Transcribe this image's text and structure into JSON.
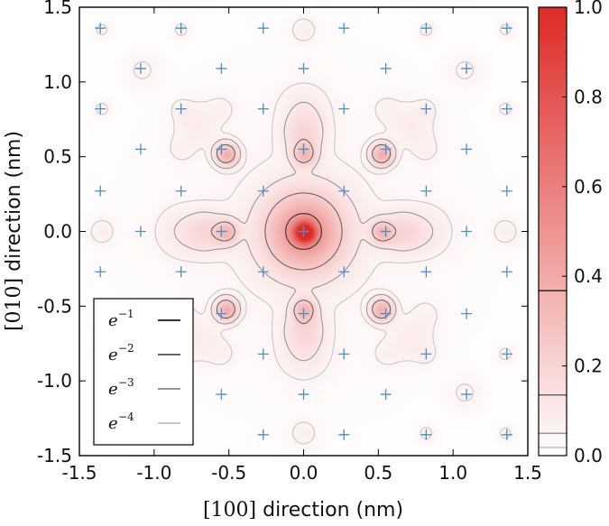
{
  "chart_data": [
    {
      "type": "heatmap",
      "title": "",
      "xlabel": {
        "bracket": "[100]",
        "text": " direction (nm)"
      },
      "ylabel": {
        "bracket": "[010]",
        "text": " direction (nm)"
      },
      "xlim": [
        -1.5,
        1.5
      ],
      "ylim": [
        -1.5,
        1.5
      ],
      "xticks": [
        "-1.5",
        "-1.0",
        "-0.5",
        "0.0",
        "0.5",
        "1.0",
        "1.5"
      ],
      "yticks": [
        "-1.5",
        "-1.0",
        "-0.5",
        "0.0",
        "0.5",
        "1.0",
        "1.5"
      ],
      "colormap": {
        "low": "#ffffff",
        "high": "#dd2a26"
      },
      "colorbar": {
        "range": [
          0.0,
          1.0
        ],
        "ticks": [
          "0.0",
          "0.2",
          "0.4",
          "0.6",
          "0.8",
          "1.0"
        ],
        "contour_marks": [
          0.3679,
          0.1353,
          0.0498,
          0.0183
        ]
      },
      "contour_levels": [
        {
          "label": "e",
          "exponent": "−1",
          "value": 0.3679,
          "color": "#333333"
        },
        {
          "label": "e",
          "exponent": "−2",
          "value": 0.1353,
          "color": "#666666"
        },
        {
          "label": "e",
          "exponent": "−3",
          "value": 0.0498,
          "color": "#999999"
        },
        {
          "label": "e",
          "exponent": "−4",
          "value": 0.0183,
          "color": "#c8c8c8"
        }
      ],
      "legend_position": "lower-left",
      "density_peaks": [
        {
          "x": 0.0,
          "y": 0.0,
          "v": 1.0,
          "s": 0.045
        },
        {
          "x": 0.0,
          "y": 0.0,
          "v": 0.32,
          "s": 0.14
        },
        {
          "x": 0.0,
          "y": 0.0,
          "v": 0.12,
          "s": 0.23
        },
        {
          "x": 0.0,
          "y": 0.65,
          "v": 0.09,
          "s": 0.09
        },
        {
          "x": 0.0,
          "y": -0.65,
          "v": 0.09,
          "s": 0.09
        },
        {
          "x": 0.65,
          "y": 0.0,
          "v": 0.09,
          "s": 0.09
        },
        {
          "x": -0.65,
          "y": 0.0,
          "v": 0.09,
          "s": 0.09
        },
        {
          "x": 0.52,
          "y": 0.52,
          "v": 0.26,
          "s": 0.05
        },
        {
          "x": -0.52,
          "y": 0.52,
          "v": 0.26,
          "s": 0.05
        },
        {
          "x": 0.52,
          "y": -0.52,
          "v": 0.26,
          "s": 0.05
        },
        {
          "x": -0.52,
          "y": -0.52,
          "v": 0.26,
          "s": 0.05
        },
        {
          "x": 0.0,
          "y": 0.52,
          "v": 0.2,
          "s": 0.05
        },
        {
          "x": 0.0,
          "y": -0.52,
          "v": 0.2,
          "s": 0.05
        },
        {
          "x": 0.52,
          "y": 0.0,
          "v": 0.2,
          "s": 0.05
        },
        {
          "x": -0.52,
          "y": 0.0,
          "v": 0.2,
          "s": 0.05
        },
        {
          "x": 0.0,
          "y": 0.82,
          "v": 0.04,
          "s": 0.11
        },
        {
          "x": 0.0,
          "y": -0.82,
          "v": 0.04,
          "s": 0.11
        },
        {
          "x": 0.82,
          "y": 0.0,
          "v": 0.04,
          "s": 0.11
        },
        {
          "x": -0.82,
          "y": 0.0,
          "v": 0.04,
          "s": 0.11
        },
        {
          "x": 0.72,
          "y": 0.72,
          "v": 0.035,
          "s": 0.1
        },
        {
          "x": -0.72,
          "y": 0.72,
          "v": 0.035,
          "s": 0.1
        },
        {
          "x": 0.72,
          "y": -0.72,
          "v": 0.035,
          "s": 0.1
        },
        {
          "x": -0.72,
          "y": -0.72,
          "v": 0.035,
          "s": 0.1
        },
        {
          "x": 0.82,
          "y": 0.55,
          "v": 0.02,
          "s": 0.06
        },
        {
          "x": -0.82,
          "y": 0.55,
          "v": 0.02,
          "s": 0.06
        },
        {
          "x": 0.82,
          "y": -0.55,
          "v": 0.02,
          "s": 0.06
        },
        {
          "x": -0.82,
          "y": -0.55,
          "v": 0.02,
          "s": 0.06
        },
        {
          "x": 0.55,
          "y": 0.82,
          "v": 0.02,
          "s": 0.06
        },
        {
          "x": -0.55,
          "y": 0.82,
          "v": 0.02,
          "s": 0.06
        },
        {
          "x": 0.55,
          "y": -0.82,
          "v": 0.02,
          "s": 0.06
        },
        {
          "x": -0.55,
          "y": -0.82,
          "v": 0.02,
          "s": 0.06
        },
        {
          "x": 0.0,
          "y": 1.35,
          "v": 0.03,
          "s": 0.06
        },
        {
          "x": 0.0,
          "y": -1.35,
          "v": 0.03,
          "s": 0.06
        },
        {
          "x": 1.35,
          "y": 0.0,
          "v": 0.03,
          "s": 0.06
        },
        {
          "x": -1.35,
          "y": 0.0,
          "v": 0.03,
          "s": 0.06
        },
        {
          "x": 1.08,
          "y": 1.08,
          "v": 0.02,
          "s": 0.08
        },
        {
          "x": -1.08,
          "y": 1.08,
          "v": 0.02,
          "s": 0.08
        },
        {
          "x": 1.08,
          "y": -1.08,
          "v": 0.02,
          "s": 0.08
        },
        {
          "x": -1.08,
          "y": -1.08,
          "v": 0.02,
          "s": 0.08
        },
        {
          "x": 0.82,
          "y": 0.82,
          "v": 0.025,
          "s": 0.04
        },
        {
          "x": -0.82,
          "y": 0.82,
          "v": 0.025,
          "s": 0.04
        },
        {
          "x": 0.82,
          "y": -0.82,
          "v": 0.025,
          "s": 0.04
        },
        {
          "x": -0.82,
          "y": -0.82,
          "v": 0.025,
          "s": 0.04
        },
        {
          "x": 1.35,
          "y": 0.82,
          "v": 0.025,
          "s": 0.04
        },
        {
          "x": -1.35,
          "y": 0.82,
          "v": 0.025,
          "s": 0.04
        },
        {
          "x": 1.35,
          "y": -0.82,
          "v": 0.025,
          "s": 0.04
        },
        {
          "x": -1.35,
          "y": -0.82,
          "v": 0.025,
          "s": 0.04
        },
        {
          "x": 0.82,
          "y": 1.35,
          "v": 0.025,
          "s": 0.04
        },
        {
          "x": -0.82,
          "y": 1.35,
          "v": 0.025,
          "s": 0.04
        },
        {
          "x": 0.82,
          "y": -1.35,
          "v": 0.025,
          "s": 0.04
        },
        {
          "x": -0.82,
          "y": -1.35,
          "v": 0.025,
          "s": 0.04
        },
        {
          "x": 1.35,
          "y": 1.35,
          "v": 0.025,
          "s": 0.04
        },
        {
          "x": -1.35,
          "y": 1.35,
          "v": 0.025,
          "s": 0.04
        },
        {
          "x": 1.35,
          "y": -1.35,
          "v": 0.025,
          "s": 0.04
        },
        {
          "x": -1.35,
          "y": -1.35,
          "v": 0.025,
          "s": 0.04
        },
        {
          "x": 0.0,
          "y": 0.0,
          "v": 0.012,
          "s": 0.9
        }
      ],
      "atom_sites": {
        "marker": "+",
        "color": "#4a8fc6",
        "points": [
          [
            -1.36,
            1.36
          ],
          [
            -0.82,
            1.36
          ],
          [
            -0.27,
            1.36
          ],
          [
            0.27,
            1.36
          ],
          [
            0.82,
            1.36
          ],
          [
            1.36,
            1.36
          ],
          [
            -1.09,
            1.09
          ],
          [
            -0.55,
            1.09
          ],
          [
            0.0,
            1.09
          ],
          [
            0.55,
            1.09
          ],
          [
            1.09,
            1.09
          ],
          [
            -1.36,
            0.82
          ],
          [
            -0.82,
            0.82
          ],
          [
            -0.27,
            0.82
          ],
          [
            0.27,
            0.82
          ],
          [
            0.82,
            0.82
          ],
          [
            1.36,
            0.82
          ],
          [
            -1.09,
            0.55
          ],
          [
            -0.55,
            0.55
          ],
          [
            0.0,
            0.55
          ],
          [
            0.55,
            0.55
          ],
          [
            1.09,
            0.55
          ],
          [
            -1.36,
            0.27
          ],
          [
            -0.82,
            0.27
          ],
          [
            -0.27,
            0.27
          ],
          [
            0.27,
            0.27
          ],
          [
            0.82,
            0.27
          ],
          [
            1.36,
            0.27
          ],
          [
            -1.09,
            0.0
          ],
          [
            -0.55,
            0.0
          ],
          [
            0.0,
            0.0
          ],
          [
            0.55,
            0.0
          ],
          [
            1.09,
            0.0
          ],
          [
            -1.36,
            -0.27
          ],
          [
            -0.82,
            -0.27
          ],
          [
            -0.27,
            -0.27
          ],
          [
            0.27,
            -0.27
          ],
          [
            0.82,
            -0.27
          ],
          [
            1.36,
            -0.27
          ],
          [
            -1.09,
            -0.55
          ],
          [
            -0.55,
            -0.55
          ],
          [
            0.0,
            -0.55
          ],
          [
            0.55,
            -0.55
          ],
          [
            1.09,
            -0.55
          ],
          [
            -1.36,
            -0.82
          ],
          [
            -0.82,
            -0.82
          ],
          [
            -0.27,
            -0.82
          ],
          [
            0.27,
            -0.82
          ],
          [
            0.82,
            -0.82
          ],
          [
            1.36,
            -0.82
          ],
          [
            -1.09,
            -1.09
          ],
          [
            -0.55,
            -1.09
          ],
          [
            0.0,
            -1.09
          ],
          [
            0.55,
            -1.09
          ],
          [
            1.09,
            -1.09
          ],
          [
            -1.36,
            -1.36
          ],
          [
            -0.82,
            -1.36
          ],
          [
            -0.27,
            -1.36
          ],
          [
            0.27,
            -1.36
          ],
          [
            0.82,
            -1.36
          ],
          [
            1.36,
            -1.36
          ]
        ]
      }
    }
  ]
}
